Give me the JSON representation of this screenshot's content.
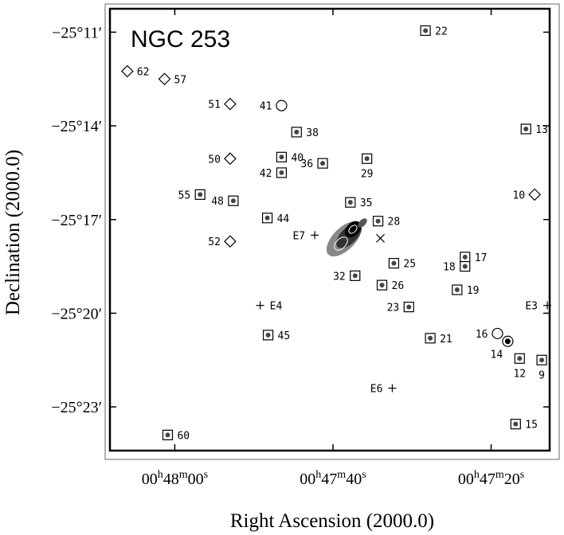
{
  "chart_data": {
    "type": "scatter",
    "title": "NGC 253",
    "xlabel": "Right Ascension (2000.0)",
    "ylabel": "Declination (2000.0)",
    "x_ticks": [
      {
        "h": "00",
        "hs": "h",
        "m": "48",
        "ms": "m",
        "s": "00",
        "ss": "s",
        "ra_s": 2880
      },
      {
        "h": "00",
        "hs": "h",
        "m": "47",
        "ms": "m",
        "s": "40",
        "ss": "s",
        "ra_s": 2860
      },
      {
        "h": "00",
        "hs": "h",
        "m": "47",
        "ms": "m",
        "s": "20",
        "ss": "s",
        "ra_s": 2840
      }
    ],
    "y_ticks": [
      {
        "label": "−25°11′",
        "dec_arcmin": -1511
      },
      {
        "label": "−25°14′",
        "dec_arcmin": -1514
      },
      {
        "label": "−25°17′",
        "dec_arcmin": -1517
      },
      {
        "label": "−25°20′",
        "dec_arcmin": -1520
      },
      {
        "label": "−25°23′",
        "dec_arcmin": -1523
      }
    ],
    "xlim_ra_s": [
      2888.2,
      2832.6
    ],
    "ylim_dec_arcmin": [
      -1510.25,
      -1524.4
    ],
    "sources": [
      {
        "id": "9",
        "marker": "square",
        "ra_s": 2833.6,
        "dec_arcmin": -1521.5,
        "pos": "below"
      },
      {
        "id": "10",
        "marker": "diamond",
        "ra_s": 2834.5,
        "dec_arcmin": -1516.2,
        "pos": "left"
      },
      {
        "id": "12",
        "marker": "square",
        "ra_s": 2836.4,
        "dec_arcmin": -1521.45,
        "pos": "below"
      },
      {
        "id": "13",
        "marker": "square",
        "ra_s": 2835.6,
        "dec_arcmin": -1514.1,
        "pos": "right"
      },
      {
        "id": "14",
        "marker": "circle",
        "ra_s": 2837.9,
        "dec_arcmin": -1520.9,
        "pos": "below-left"
      },
      {
        "id": "15",
        "marker": "square",
        "ra_s": 2836.9,
        "dec_arcmin": -1523.55,
        "pos": "right"
      },
      {
        "id": "16",
        "marker": "circle",
        "ra_s": 2839.2,
        "dec_arcmin": -1520.65,
        "pos": "left"
      },
      {
        "id": "17",
        "marker": "square",
        "ra_s": 2843.3,
        "dec_arcmin": -1518.2,
        "pos": "right"
      },
      {
        "id": "18",
        "marker": "square",
        "ra_s": 2843.3,
        "dec_arcmin": -1518.5,
        "pos": "left"
      },
      {
        "id": "19",
        "marker": "square",
        "ra_s": 2844.3,
        "dec_arcmin": -1519.25,
        "pos": "right"
      },
      {
        "id": "21",
        "marker": "square",
        "ra_s": 2847.7,
        "dec_arcmin": -1520.8,
        "pos": "right"
      },
      {
        "id": "22",
        "marker": "square",
        "ra_s": 2848.3,
        "dec_arcmin": -1510.95,
        "pos": "right"
      },
      {
        "id": "23",
        "marker": "square",
        "ra_s": 2850.4,
        "dec_arcmin": -1519.8,
        "pos": "left"
      },
      {
        "id": "25",
        "marker": "square",
        "ra_s": 2852.3,
        "dec_arcmin": -1518.4,
        "pos": "right"
      },
      {
        "id": "26",
        "marker": "square",
        "ra_s": 2853.8,
        "dec_arcmin": -1519.1,
        "pos": "right"
      },
      {
        "id": "28",
        "marker": "square",
        "ra_s": 2854.3,
        "dec_arcmin": -1517.05,
        "pos": "right"
      },
      {
        "id": "29",
        "marker": "square",
        "ra_s": 2855.7,
        "dec_arcmin": -1515.05,
        "pos": "below"
      },
      {
        "id": "32",
        "marker": "square",
        "ra_s": 2857.2,
        "dec_arcmin": -1518.8,
        "pos": "left"
      },
      {
        "id": "35",
        "marker": "square",
        "ra_s": 2857.8,
        "dec_arcmin": -1516.45,
        "pos": "right"
      },
      {
        "id": "36",
        "marker": "square",
        "ra_s": 2861.3,
        "dec_arcmin": -1515.2,
        "pos": "left"
      },
      {
        "id": "38",
        "marker": "square",
        "ra_s": 2864.6,
        "dec_arcmin": -1514.2,
        "pos": "right"
      },
      {
        "id": "40",
        "marker": "square",
        "ra_s": 2866.5,
        "dec_arcmin": -1515.0,
        "pos": "right"
      },
      {
        "id": "41",
        "marker": "circle",
        "ra_s": 2866.5,
        "dec_arcmin": -1513.35,
        "pos": "left"
      },
      {
        "id": "42",
        "marker": "square",
        "ra_s": 2866.5,
        "dec_arcmin": -1515.5,
        "pos": "left"
      },
      {
        "id": "44",
        "marker": "square",
        "ra_s": 2868.3,
        "dec_arcmin": -1516.95,
        "pos": "right"
      },
      {
        "id": "45",
        "marker": "square",
        "ra_s": 2868.2,
        "dec_arcmin": -1520.7,
        "pos": "right"
      },
      {
        "id": "48",
        "marker": "square",
        "ra_s": 2872.6,
        "dec_arcmin": -1516.4,
        "pos": "left"
      },
      {
        "id": "50",
        "marker": "diamond",
        "ra_s": 2873.0,
        "dec_arcmin": -1515.05,
        "pos": "left"
      },
      {
        "id": "51",
        "marker": "diamond",
        "ra_s": 2873.0,
        "dec_arcmin": -1513.3,
        "pos": "left"
      },
      {
        "id": "52",
        "marker": "diamond",
        "ra_s": 2873.0,
        "dec_arcmin": -1517.7,
        "pos": "left"
      },
      {
        "id": "55",
        "marker": "square",
        "ra_s": 2876.8,
        "dec_arcmin": -1516.2,
        "pos": "left"
      },
      {
        "id": "57",
        "marker": "diamond",
        "ra_s": 2881.3,
        "dec_arcmin": -1512.5,
        "pos": "right"
      },
      {
        "id": "60",
        "marker": "square",
        "ra_s": 2880.9,
        "dec_arcmin": -1523.9,
        "pos": "right"
      },
      {
        "id": "62",
        "marker": "diamond",
        "ra_s": 2886.0,
        "dec_arcmin": -1512.25,
        "pos": "right"
      },
      {
        "id": "E3",
        "marker": "plus",
        "ra_s": 2832.9,
        "dec_arcmin": -1519.75,
        "pos": "left"
      },
      {
        "id": "E4",
        "marker": "plus",
        "ra_s": 2869.2,
        "dec_arcmin": -1519.75,
        "pos": "right"
      },
      {
        "id": "E6",
        "marker": "plus",
        "ra_s": 2852.5,
        "dec_arcmin": -1522.4,
        "pos": "left"
      },
      {
        "id": "E7",
        "marker": "plus",
        "ra_s": 2862.3,
        "dec_arcmin": -1517.5,
        "pos": "left"
      },
      {
        "id": "",
        "marker": "cross",
        "ra_s": 2854.0,
        "dec_arcmin": -1517.6,
        "pos": "none"
      }
    ]
  }
}
